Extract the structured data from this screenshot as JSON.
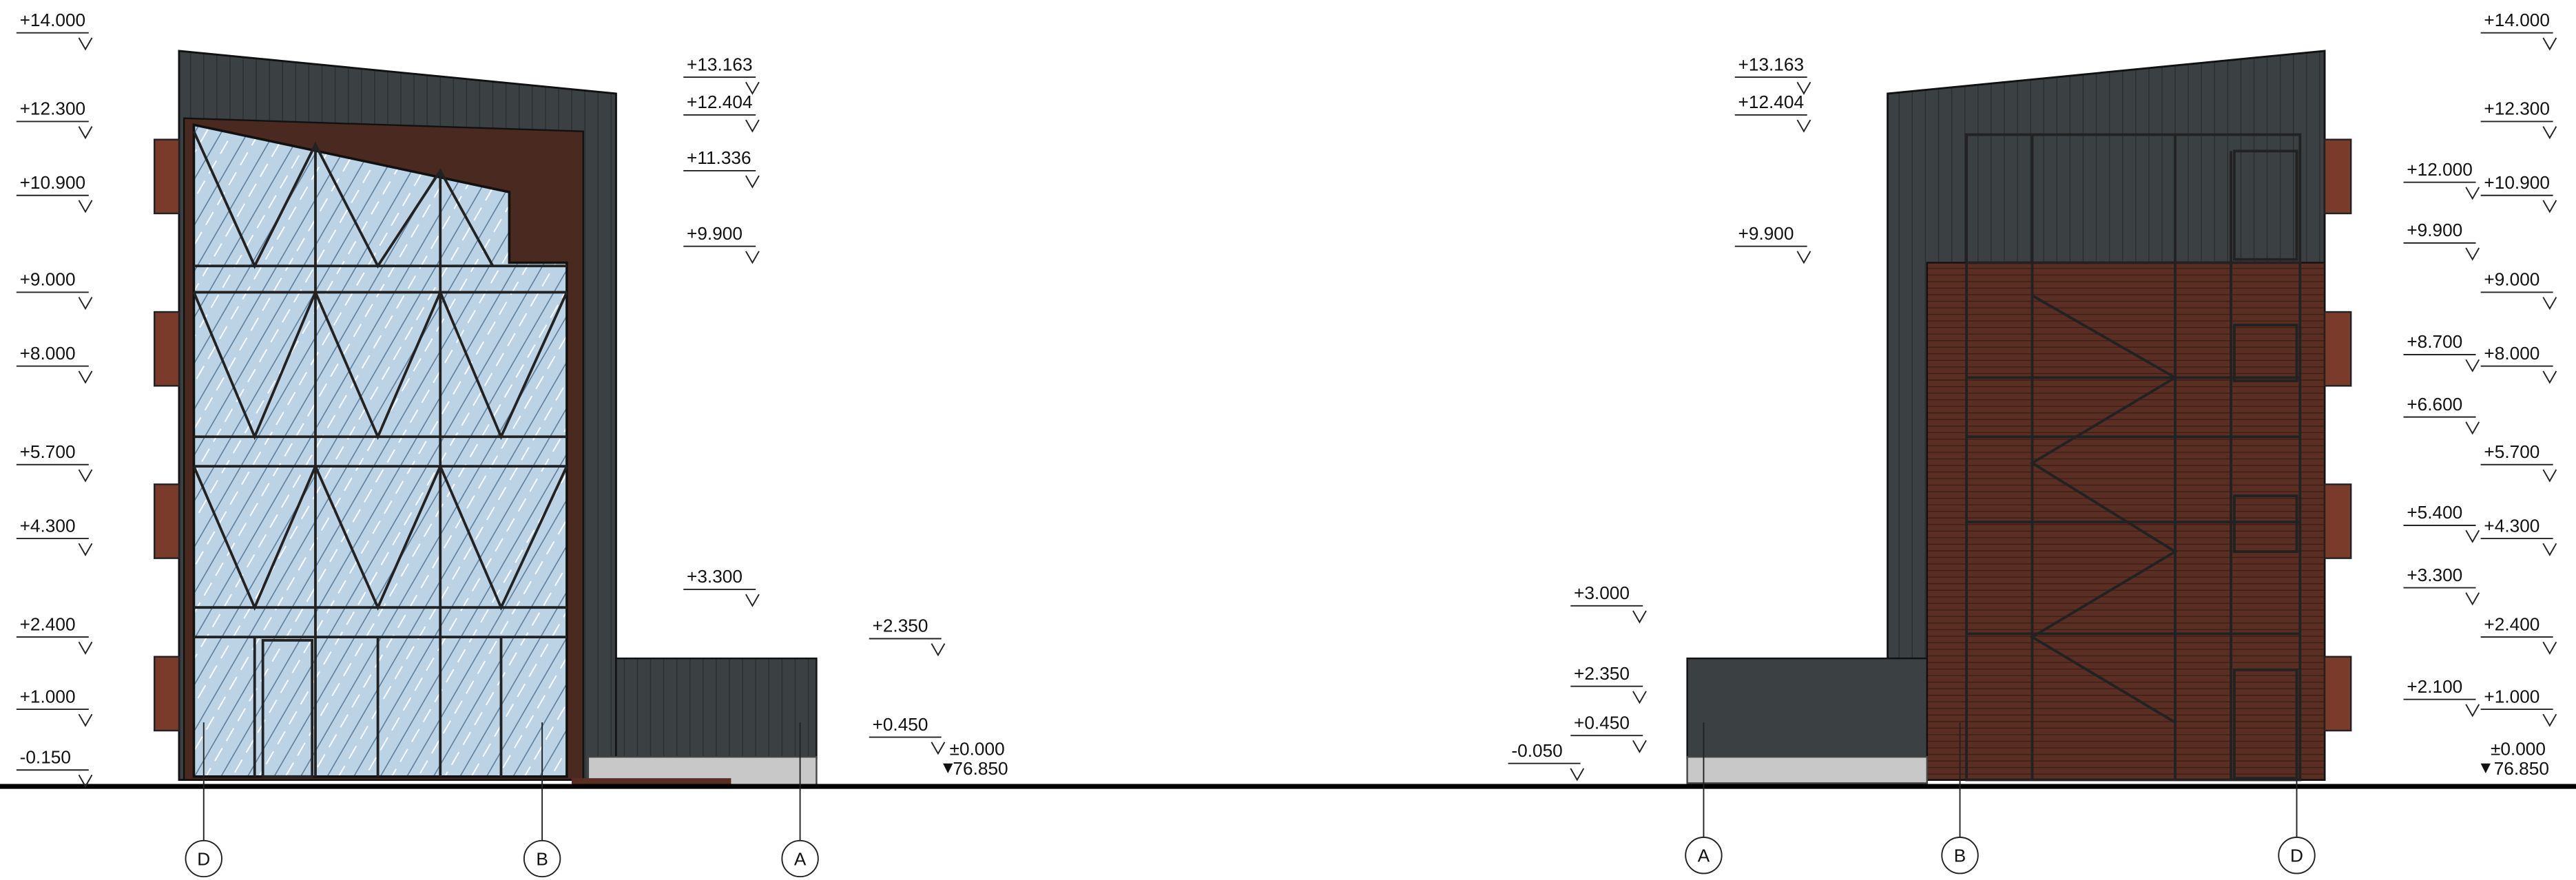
{
  "left_elevation": {
    "levels_left": [
      "+14.000",
      "+12.300",
      "+10.900",
      "+9.000",
      "+8.000",
      "+5.700",
      "+4.300",
      "+2.400",
      "+1.000",
      "-0.150"
    ],
    "levels_right": [
      "+13.163",
      "+12.404",
      "+11.336",
      "+9.900",
      "+3.300"
    ],
    "levels_annex": [
      "+2.350",
      "+0.450",
      "±0.000",
      "76.850"
    ],
    "axes": [
      "D",
      "B",
      "A"
    ]
  },
  "right_elevation": {
    "levels_left": [
      "+13.163",
      "+12.404",
      "+9.900"
    ],
    "levels_annex": [
      "+3.000",
      "+2.350",
      "+0.450",
      "-0.050"
    ],
    "levels_inner": [
      "+12.000",
      "+9.900",
      "+8.700",
      "+6.600",
      "+5.400",
      "+3.300",
      "+2.100"
    ],
    "levels_right": [
      "+14.000",
      "+12.300",
      "+10.900",
      "+9.000",
      "+8.000",
      "+5.700",
      "+4.300",
      "+2.400",
      "+1.000",
      "±0.000",
      "76.850"
    ],
    "axes": [
      "A",
      "B",
      "D"
    ]
  }
}
